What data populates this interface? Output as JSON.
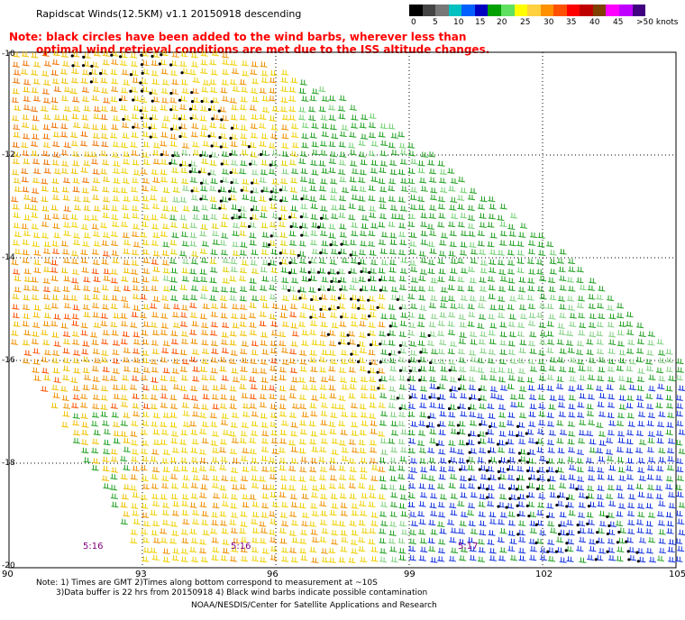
{
  "title": "Rapidscat Winds(12.5KM) v1.1 20150918 descending",
  "note_red_line1": "Note: black circles have been added to the wind barbs, wherever less than",
  "note_red_line2": "optimal wind retrieval conditions are met due to the ISS altitude changes.",
  "colorbar": {
    "labels": [
      "0",
      "5",
      "10",
      "15",
      "20",
      "25",
      "30",
      "35",
      "40",
      "45",
      ">50 knots"
    ],
    "colors": [
      "#000000",
      "#444444",
      "#777777",
      "#00c0c0",
      "#0060ff",
      "#0000c0",
      "#00a000",
      "#60e060",
      "#ffff00",
      "#ffd040",
      "#ff9000",
      "#ff5000",
      "#ff0000",
      "#c00000",
      "#804000",
      "#ff00ff",
      "#c000ff",
      "#400080"
    ]
  },
  "map": {
    "lon_labels": [
      "90",
      "93",
      "96",
      "99",
      "102",
      "105"
    ],
    "lat_labels": [
      "-10",
      "-12",
      "-14",
      "-16",
      "-18",
      "-20"
    ],
    "time_labels": [
      "5:16",
      "5:16",
      "5:17"
    ]
  },
  "footnote_line1": "Note: 1) Times are GMT 2)Times along bottom correspond to measurement at ~10S",
  "footnote_line2": "3)Data buffer is 22 hrs from 20150918 4) Black wind barbs indicate possible contamination",
  "credit": "NOAA/NESDIS/Center for Satellite Applications and Research"
}
